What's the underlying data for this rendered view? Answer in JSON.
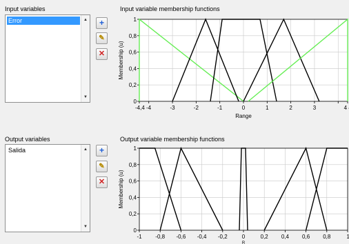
{
  "input_panel": {
    "title": "Input variables",
    "items": [
      "Error"
    ],
    "selected": 0,
    "plot_title": "Input variable membership functions",
    "ylabel": "Membership (u)",
    "xlabel": "Range",
    "x_ticks": [
      "-4,4 -4",
      "-3",
      "-2",
      "-1",
      "0",
      "1",
      "2",
      "3",
      "4 4,"
    ],
    "y_ticks": [
      "1",
      "0,8",
      "0,6",
      "0,4",
      "0,2",
      "0"
    ]
  },
  "output_panel": {
    "title": "Output variables",
    "items": [
      "Salida"
    ],
    "plot_title": "Output variable membership functions",
    "ylabel": "Membership (u)",
    "xlabel": "R",
    "x_ticks": [
      "-1",
      "-0,8",
      "-0,6",
      "-0,4",
      "-0,2",
      "0",
      "0,2",
      "0,4",
      "0,6",
      "0,8",
      "1"
    ],
    "y_ticks": [
      "1",
      "0,8",
      "0,6",
      "0,4",
      "0,2",
      "0"
    ]
  },
  "buttons": {
    "add": "+",
    "edit": "✎",
    "delete": "✕"
  },
  "colors": {
    "selected": "#3399ff",
    "highlight_mf": "#66ee55",
    "mf": "#000000",
    "grid": "#c8c8c8"
  },
  "chart_data": [
    {
      "type": "line",
      "title": "Input variable membership functions",
      "xlabel": "Range",
      "ylabel": "Membership (u)",
      "xlim": [
        -4.4,
        4.4
      ],
      "ylim": [
        0,
        1
      ],
      "series": [
        {
          "x": [
            -4.4,
            -4.4,
            0.0
          ],
          "y": [
            0,
            1,
            0
          ],
          "highlight": true
        },
        {
          "x": [
            -3.0,
            -1.6,
            -0.2
          ],
          "y": [
            0,
            1,
            0
          ]
        },
        {
          "x": [
            -1.4,
            -0.9,
            0.1,
            0.7,
            1.4
          ],
          "y": [
            0,
            1,
            1,
            1,
            0
          ]
        },
        {
          "x": [
            0.0,
            1.7,
            3.2
          ],
          "y": [
            0,
            1,
            0
          ]
        },
        {
          "x": [
            0.2,
            4.4,
            4.4
          ],
          "y": [
            0,
            1,
            0
          ],
          "highlight": true
        }
      ]
    },
    {
      "type": "line",
      "title": "Output variable membership functions",
      "ylabel": "Membership (u)",
      "xlim": [
        -1,
        1
      ],
      "ylim": [
        0,
        1
      ],
      "series": [
        {
          "x": [
            -1.0,
            -0.85,
            -0.6
          ],
          "y": [
            1,
            1,
            0
          ]
        },
        {
          "x": [
            -0.8,
            -0.6,
            -0.2
          ],
          "y": [
            0,
            1,
            0
          ]
        },
        {
          "x": [
            -0.04,
            -0.02,
            0.02,
            0.04
          ],
          "y": [
            0,
            1,
            1,
            0
          ]
        },
        {
          "x": [
            0.2,
            0.6,
            0.8
          ],
          "y": [
            0,
            1,
            0
          ]
        },
        {
          "x": [
            0.6,
            0.8,
            1.0
          ],
          "y": [
            0,
            1,
            1
          ]
        }
      ]
    }
  ]
}
